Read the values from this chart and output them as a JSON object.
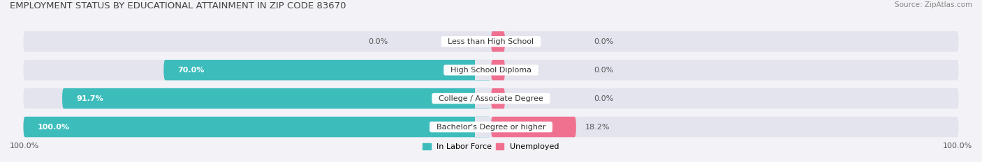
{
  "title": "EMPLOYMENT STATUS BY EDUCATIONAL ATTAINMENT IN ZIP CODE 83670",
  "source": "Source: ZipAtlas.com",
  "categories": [
    "Less than High School",
    "High School Diploma",
    "College / Associate Degree",
    "Bachelor's Degree or higher"
  ],
  "labor_force": [
    0.0,
    70.0,
    91.7,
    100.0
  ],
  "unemployed": [
    0.0,
    0.0,
    0.0,
    18.2
  ],
  "labor_force_color": "#3dbcbc",
  "unemployed_color": "#f07090",
  "bg_color": "#f2f2f7",
  "bar_bg_color": "#e4e4ee",
  "title_fontsize": 9.5,
  "source_fontsize": 7.5,
  "label_fontsize": 8,
  "cat_fontsize": 8,
  "axis_label_fontsize": 8,
  "legend_fontsize": 8,
  "left_axis_label": "100.0%",
  "right_axis_label": "100.0%",
  "stub_size": 3.0
}
